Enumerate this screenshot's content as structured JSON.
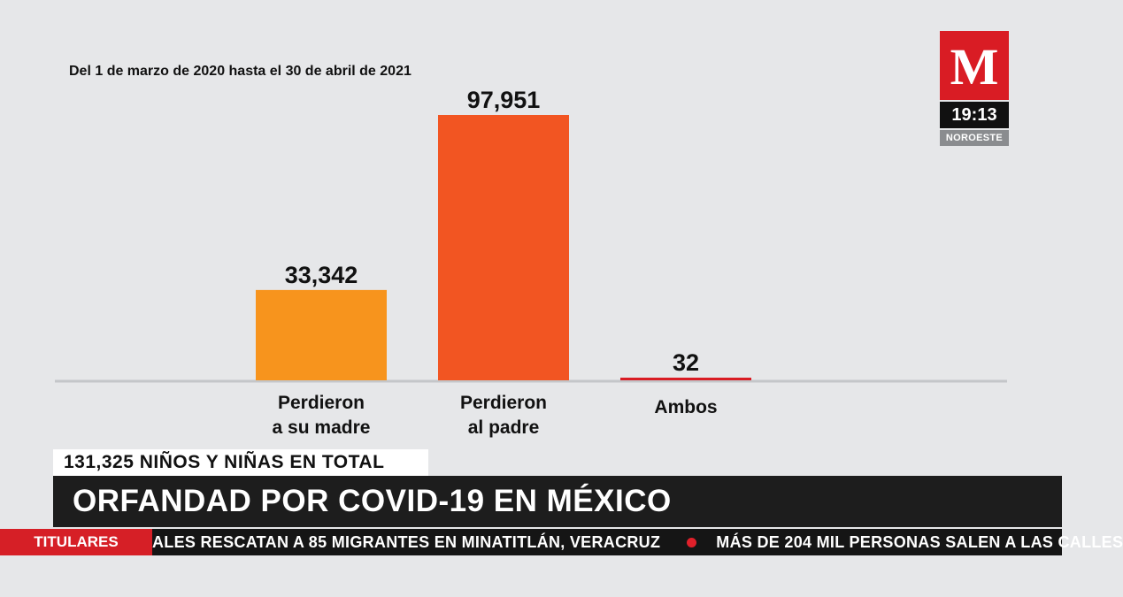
{
  "subtitle": "Del 1 de marzo de 2020 hasta el 30 de abril de 2021",
  "logo": {
    "letter": "M",
    "time": "19:13",
    "region": "NOROESTE",
    "brand_color": "#d91c24"
  },
  "summary": {
    "total": "131,325 NIÑOS Y NIÑAS EN TOTAL"
  },
  "headline": "ORFANDAD POR COVID-19 EN MÉXICO",
  "ticker": {
    "label": "TITULARES",
    "items": [
      "ALES RESCATAN A 85 MIGRANTES EN MINATITLÁN, VERACRUZ",
      "MÁS DE 204 MIL PERSONAS SALEN A LAS CALLES"
    ]
  },
  "chart_data": {
    "type": "bar",
    "categories": [
      [
        "Perdieron",
        "a su madre"
      ],
      [
        "Perdieron",
        "al padre"
      ],
      [
        "Ambos"
      ]
    ],
    "values": [
      33342,
      97951,
      32
    ],
    "value_labels": [
      "33,342",
      "97,951",
      "32"
    ],
    "colors": [
      "#f7941d",
      "#f25522",
      "#d91c24"
    ],
    "ylim": [
      0,
      97951
    ],
    "grid": false
  }
}
